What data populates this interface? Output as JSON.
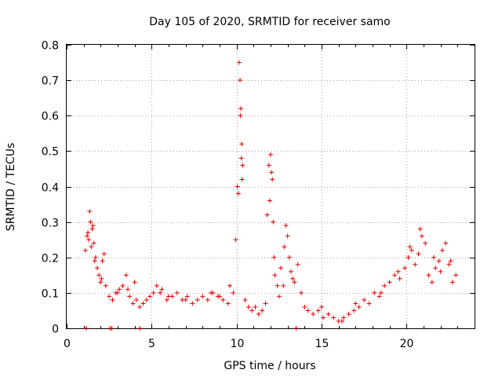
{
  "chart_data": {
    "type": "scatter",
    "title": "Day 105 of 2020, SRMTID for receiver samo",
    "xlabel": "GPS time / hours",
    "ylabel": "SRMTID / TECUs",
    "xlim": [
      0,
      24
    ],
    "ylim": [
      0,
      0.8
    ],
    "xticks": [
      0,
      5,
      10,
      15,
      20
    ],
    "yticks": [
      0,
      0.1,
      0.2,
      0.3,
      0.4,
      0.5,
      0.6,
      0.7,
      0.8
    ],
    "xtick_labels": [
      "0",
      "5",
      "10",
      "15",
      "20"
    ],
    "ytick_labels": [
      "0",
      "0.1",
      "0.2",
      "0.3",
      "0.4",
      "0.5",
      "0.6",
      "0.7",
      "0.8"
    ],
    "grid": true,
    "marker": "+",
    "color": "#e00000",
    "series": [
      {
        "name": "SRMTID",
        "x": [
          1.1,
          1.2,
          1.3,
          1.4,
          1.5,
          1.6,
          1.7,
          1.8,
          1.9,
          2.0,
          2.1,
          2.2,
          2.3,
          2.5,
          2.7,
          2.9,
          3.1,
          3.3,
          3.5,
          3.7,
          3.9,
          4.1,
          4.3,
          4.5,
          4.7,
          4.9,
          5.1,
          5.3,
          5.6,
          5.9,
          6.2,
          6.5,
          6.8,
          7.1,
          7.4,
          7.7,
          8.0,
          8.3,
          8.6,
          8.9,
          9.2,
          9.5,
          9.8,
          9.95,
          10.05,
          10.15,
          10.2,
          10.25,
          10.3,
          10.35,
          10.5,
          10.7,
          10.9,
          11.1,
          11.3,
          11.5,
          11.7,
          11.8,
          11.9,
          12.0,
          12.1,
          12.2,
          12.4,
          12.6,
          12.8,
          12.9,
          13.0,
          13.2,
          13.4,
          13.6,
          13.8,
          14.0,
          14.2,
          14.5,
          14.8,
          15.1,
          15.4,
          15.7,
          16.0,
          16.3,
          16.6,
          16.9,
          17.2,
          17.5,
          17.8,
          18.1,
          18.4,
          18.7,
          19.0,
          19.3,
          19.6,
          19.9,
          20.1,
          20.3,
          20.5,
          20.7,
          20.9,
          21.1,
          21.3,
          21.5,
          21.7,
          21.9,
          22.1,
          22.3,
          22.5,
          22.7,
          22.9,
          1.15,
          2.55,
          2.65,
          4.3,
          13.5,
          1.35,
          1.55,
          1.25,
          1.45,
          1.65,
          2.05,
          3.0,
          3.6,
          4.0,
          5.5,
          6.0,
          7.0,
          8.5,
          9.0,
          9.6,
          10.1,
          10.22,
          10.28,
          10.32,
          11.95,
          12.05,
          12.15,
          12.25,
          12.5,
          12.75,
          13.1,
          13.3,
          15.0,
          16.2,
          17.0,
          18.5,
          19.5,
          20.2,
          20.8,
          21.6,
          22.0,
          22.6
        ],
        "y": [
          0.22,
          0.26,
          0.25,
          0.3,
          0.28,
          0.24,
          0.2,
          0.17,
          0.15,
          0.13,
          0.19,
          0.21,
          0.12,
          0.09,
          0.08,
          0.1,
          0.11,
          0.12,
          0.15,
          0.09,
          0.07,
          0.08,
          0.06,
          0.07,
          0.08,
          0.09,
          0.1,
          0.12,
          0.11,
          0.08,
          0.09,
          0.1,
          0.08,
          0.09,
          0.07,
          0.08,
          0.09,
          0.08,
          0.1,
          0.09,
          0.08,
          0.07,
          0.1,
          0.25,
          0.4,
          0.75,
          0.7,
          0.62,
          0.52,
          0.46,
          0.08,
          0.06,
          0.05,
          0.06,
          0.04,
          0.05,
          0.07,
          0.32,
          0.46,
          0.49,
          0.42,
          0.2,
          0.12,
          0.17,
          0.23,
          0.29,
          0.26,
          0.16,
          0.13,
          0.18,
          0.1,
          0.06,
          0.05,
          0.04,
          0.05,
          0.03,
          0.04,
          0.03,
          0.02,
          0.03,
          0.04,
          0.05,
          0.06,
          0.08,
          0.07,
          0.1,
          0.09,
          0.12,
          0.13,
          0.15,
          0.14,
          0.17,
          0.2,
          0.22,
          0.18,
          0.21,
          0.26,
          0.24,
          0.15,
          0.13,
          0.17,
          0.19,
          0.22,
          0.24,
          0.18,
          0.13,
          0.15,
          0.0,
          0.0,
          0.0,
          0.0,
          0.0,
          0.33,
          0.29,
          0.27,
          0.23,
          0.19,
          0.14,
          0.1,
          0.11,
          0.13,
          0.1,
          0.09,
          0.08,
          0.1,
          0.09,
          0.12,
          0.38,
          0.6,
          0.48,
          0.42,
          0.36,
          0.44,
          0.3,
          0.15,
          0.09,
          0.12,
          0.2,
          0.14,
          0.06,
          0.02,
          0.07,
          0.1,
          0.16,
          0.23,
          0.28,
          0.2,
          0.16,
          0.19
        ]
      }
    ]
  }
}
